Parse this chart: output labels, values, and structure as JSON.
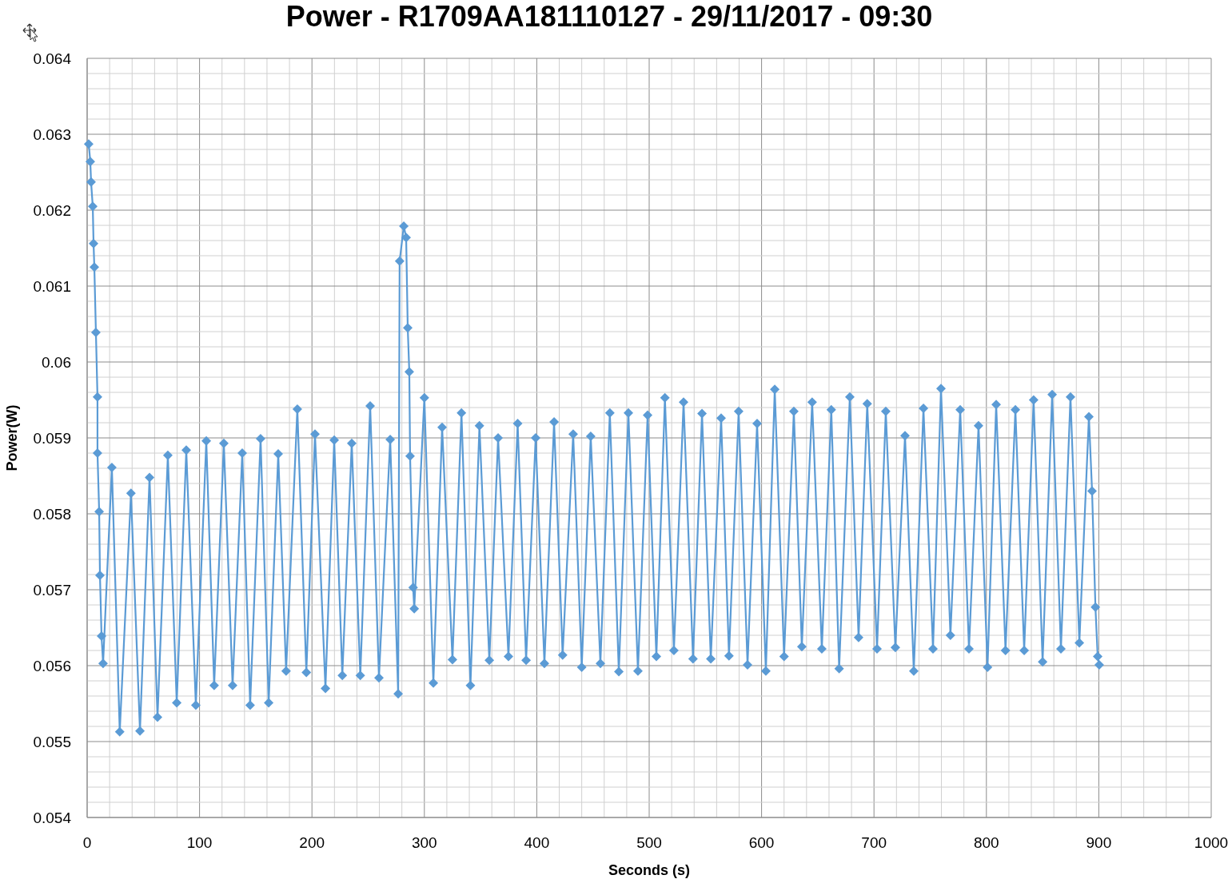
{
  "chart_data": {
    "type": "line",
    "title": "Power - R1709AA181110127 - 29/11/2017 - 09:30",
    "xlabel": "Seconds (s)",
    "ylabel": "Power(W)",
    "grid": true,
    "marker": "diamond",
    "line_style": "solid",
    "xlim": [
      0,
      1000
    ],
    "xticks": [
      0,
      {
        "value": 20,
        "label": null
      },
      {
        "value": 40,
        "label": null
      },
      {
        "value": 60,
        "label": null
      },
      {
        "value": 80,
        "label": null
      },
      100,
      {
        "value": 120,
        "label": null
      },
      {
        "value": 140,
        "label": null
      },
      {
        "value": 160,
        "label": null
      },
      {
        "value": 180,
        "label": null
      },
      200,
      {
        "value": 220,
        "label": null
      },
      {
        "value": 240,
        "label": null
      },
      {
        "value": 260,
        "label": null
      },
      {
        "value": 280,
        "label": null
      },
      300,
      {
        "value": 320,
        "label": null
      },
      {
        "value": 340,
        "label": null
      },
      {
        "value": 360,
        "label": null
      },
      {
        "value": 380,
        "label": null
      },
      400,
      {
        "value": 420,
        "label": null
      },
      {
        "value": 440,
        "label": null
      },
      {
        "value": 460,
        "label": null
      },
      {
        "value": 480,
        "label": null
      },
      500,
      {
        "value": 520,
        "label": null
      },
      {
        "value": 540,
        "label": null
      },
      {
        "value": 560,
        "label": null
      },
      {
        "value": 580,
        "label": null
      },
      600,
      {
        "value": 620,
        "label": null
      },
      {
        "value": 640,
        "label": null
      },
      {
        "value": 660,
        "label": null
      },
      {
        "value": 680,
        "label": null
      },
      700,
      {
        "value": 720,
        "label": null
      },
      {
        "value": 740,
        "label": null
      },
      {
        "value": 760,
        "label": null
      },
      {
        "value": 780,
        "label": null
      },
      800,
      {
        "value": 820,
        "label": null
      },
      {
        "value": 840,
        "label": null
      },
      {
        "value": 860,
        "label": null
      },
      {
        "value": 880,
        "label": null
      },
      900,
      {
        "value": 920,
        "label": null
      },
      {
        "value": 940,
        "label": null
      },
      {
        "value": 960,
        "label": null
      },
      {
        "value": 980,
        "label": null
      },
      1000
    ],
    "ylim": [
      0.054,
      0.064
    ],
    "yticks": [
      0.054,
      {
        "value": 0.0542,
        "label": null
      },
      {
        "value": 0.0544,
        "label": null
      },
      {
        "value": 0.0546,
        "label": null
      },
      {
        "value": 0.0548,
        "label": null
      },
      0.055,
      {
        "value": 0.0552,
        "label": null
      },
      {
        "value": 0.0554,
        "label": null
      },
      {
        "value": 0.0556,
        "label": null
      },
      {
        "value": 0.0558,
        "label": null
      },
      0.056,
      {
        "value": 0.0562,
        "label": null
      },
      {
        "value": 0.0564,
        "label": null
      },
      {
        "value": 0.0566,
        "label": null
      },
      {
        "value": 0.0568,
        "label": null
      },
      0.057,
      {
        "value": 0.0572,
        "label": null
      },
      {
        "value": 0.0574,
        "label": null
      },
      {
        "value": 0.0576,
        "label": null
      },
      {
        "value": 0.0578,
        "label": null
      },
      0.058,
      {
        "value": 0.0582,
        "label": null
      },
      {
        "value": 0.0584,
        "label": null
      },
      {
        "value": 0.0586,
        "label": null
      },
      {
        "value": 0.0588,
        "label": null
      },
      0.059,
      {
        "value": 0.0592,
        "label": null
      },
      {
        "value": 0.0594,
        "label": null
      },
      {
        "value": 0.0596,
        "label": null
      },
      {
        "value": 0.0598,
        "label": null
      },
      0.06,
      {
        "value": 0.0602,
        "label": null
      },
      {
        "value": 0.0604,
        "label": null
      },
      {
        "value": 0.0606,
        "label": null
      },
      {
        "value": 0.0608,
        "label": null
      },
      0.061,
      {
        "value": 0.0612,
        "label": null
      },
      {
        "value": 0.0614,
        "label": null
      },
      {
        "value": 0.0616,
        "label": null
      },
      {
        "value": 0.0618,
        "label": null
      },
      0.062,
      {
        "value": 0.0622,
        "label": null
      },
      {
        "value": 0.0624,
        "label": null
      },
      {
        "value": 0.0626,
        "label": null
      },
      {
        "value": 0.0628,
        "label": null
      },
      0.063,
      {
        "value": 0.0632,
        "label": null
      },
      {
        "value": 0.0634,
        "label": null
      },
      {
        "value": 0.0636,
        "label": null
      },
      {
        "value": 0.0638,
        "label": null
      },
      0.064
    ],
    "series": [
      {
        "color": "#5b9bd5",
        "x": [
          1.4,
          2.8,
          3.5,
          5,
          5.7,
          6.4,
          7.8,
          9.2,
          9.2,
          10.7,
          11.4,
          12.8,
          14.2,
          22,
          29,
          39,
          47,
          55.5,
          62.6,
          71.8,
          79.7,
          88.2,
          96.7,
          106,
          113,
          121.6,
          129.4,
          138,
          145,
          154.3,
          161.5,
          170,
          177,
          187,
          195,
          202.7,
          212,
          219.8,
          227,
          235.4,
          243,
          251.8,
          259.6,
          269.6,
          276.7,
          278,
          281.7,
          283.8,
          285.2,
          286.6,
          287.3,
          290,
          291,
          300,
          308,
          315.8,
          325,
          333,
          341,
          349,
          357.8,
          365.6,
          374.8,
          383,
          390.5,
          399,
          406.8,
          415.4,
          423,
          432.4,
          440,
          448,
          456.6,
          465,
          473,
          481.5,
          490,
          498.6,
          506.4,
          514,
          522,
          530.6,
          539,
          547,
          554.8,
          564,
          571,
          579.6,
          587.5,
          596,
          603.8,
          611.7,
          620,
          628.7,
          635.8,
          645,
          653.6,
          662,
          669,
          678.5,
          686.3,
          694,
          702.7,
          710.5,
          719,
          727.6,
          735.4,
          744,
          752.5,
          759.6,
          768,
          776.7,
          784.5,
          793,
          801,
          808.7,
          817,
          825.8,
          833.6,
          842,
          850,
          858.5,
          866.3,
          874.8,
          882.7,
          891.2,
          894,
          897,
          899,
          900.4
        ],
        "values": [
          0.06287,
          0.06264,
          0.06237,
          0.06205,
          0.06156,
          0.06125,
          0.06039,
          0.05954,
          0.0588,
          0.05803,
          0.05719,
          0.05639,
          0.05603,
          0.05861,
          0.05513,
          0.05827,
          0.05514,
          0.05848,
          0.05532,
          0.05877,
          0.05551,
          0.05884,
          0.05548,
          0.05896,
          0.05574,
          0.05893,
          0.05574,
          0.0588,
          0.05548,
          0.05899,
          0.05551,
          0.05879,
          0.05593,
          0.05938,
          0.05591,
          0.05905,
          0.0557,
          0.05897,
          0.05587,
          0.05893,
          0.05587,
          0.05942,
          0.05584,
          0.05898,
          0.05563,
          0.06133,
          0.06179,
          0.06164,
          0.06045,
          0.05987,
          0.05876,
          0.05703,
          0.05675,
          0.05953,
          0.05577,
          0.05914,
          0.05608,
          0.05933,
          0.05574,
          0.05916,
          0.05607,
          0.059,
          0.05612,
          0.05919,
          0.05607,
          0.059,
          0.05603,
          0.05921,
          0.05614,
          0.05905,
          0.05598,
          0.05902,
          0.05603,
          0.05933,
          0.05592,
          0.05933,
          0.05593,
          0.0593,
          0.05612,
          0.05953,
          0.0562,
          0.05947,
          0.05609,
          0.05932,
          0.05609,
          0.05926,
          0.05613,
          0.05935,
          0.05601,
          0.05919,
          0.05593,
          0.05964,
          0.05612,
          0.05935,
          0.05625,
          0.05947,
          0.05622,
          0.05937,
          0.05596,
          0.05954,
          0.05637,
          0.05945,
          0.05622,
          0.05935,
          0.05624,
          0.05903,
          0.05593,
          0.05939,
          0.05622,
          0.05965,
          0.0564,
          0.05937,
          0.05622,
          0.05916,
          0.05598,
          0.05944,
          0.0562,
          0.05937,
          0.0562,
          0.0595,
          0.05605,
          0.05957,
          0.05622,
          0.05954,
          0.0563,
          0.05928,
          0.0583,
          0.05677,
          0.05612,
          0.05601
        ]
      }
    ]
  }
}
